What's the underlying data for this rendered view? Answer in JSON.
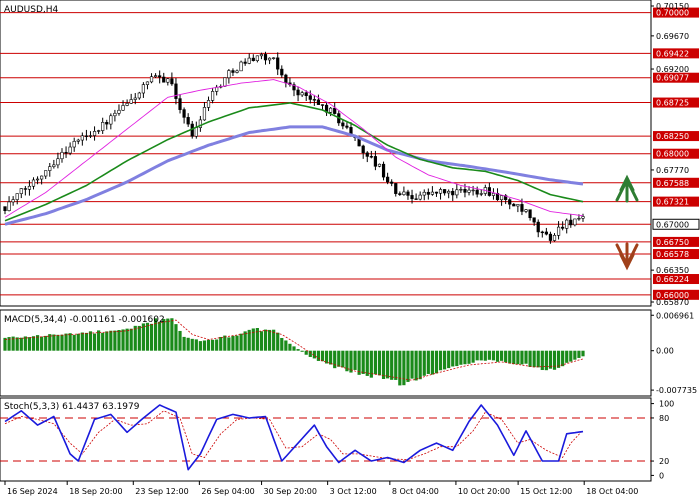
{
  "colors": {
    "background": "#ffffff",
    "bull_candle": "#5a5a5a",
    "bear_candle": "#000000",
    "level_line": "#cc0000",
    "level_tag": "#cc0000",
    "ma_fast": "#e020e0",
    "ma_mid": "#1a8a1a",
    "ma_slow": "#8080e0",
    "macd_hist": "#1a8a1a",
    "macd_signal": "#cc0000",
    "stoch_main": "#1a1adc",
    "stoch_signal": "#cc0000",
    "arrow_up": "#2e7d32",
    "arrow_down": "#a0401a",
    "axis": "#000000"
  },
  "icons": {
    "up_arrow": "double-chevron-up-icon",
    "down_arrow": "double-chevron-down-icon"
  },
  "chart_data": [
    {
      "type": "candlestick",
      "title": "AUDUSD,H4",
      "ylim": [
        0.6587,
        0.7015
      ],
      "price_scale": [
        "0.70150",
        "0.69670",
        "0.69200",
        "0.67770",
        "0.66350",
        "0.65870"
      ],
      "current_price": "0.67000",
      "levels": [
        {
          "value": 0.7,
          "label": "0.70000"
        },
        {
          "value": 0.69422,
          "label": "0.69422"
        },
        {
          "value": 0.69077,
          "label": "0.69077"
        },
        {
          "value": 0.68725,
          "label": "0.68725"
        },
        {
          "value": 0.6825,
          "label": "0.68250"
        },
        {
          "value": 0.68,
          "label": "0.68000"
        },
        {
          "value": 0.67588,
          "label": "0.67588"
        },
        {
          "value": 0.67321,
          "label": "0.67321"
        },
        {
          "value": 0.67,
          "label": "0.67000"
        },
        {
          "value": 0.6675,
          "label": "0.66750"
        },
        {
          "value": 0.66578,
          "label": "0.66578"
        },
        {
          "value": 0.66224,
          "label": "0.66224"
        },
        {
          "value": 0.66,
          "label": "0.66000"
        }
      ],
      "anchors": [
        [
          0,
          0.6725
        ],
        [
          6,
          0.6755
        ],
        [
          12,
          0.679
        ],
        [
          18,
          0.682
        ],
        [
          24,
          0.684
        ],
        [
          30,
          0.687
        ],
        [
          36,
          0.6905
        ],
        [
          40,
          0.6908
        ],
        [
          42,
          0.688
        ],
        [
          46,
          0.6825
        ],
        [
          50,
          0.688
        ],
        [
          56,
          0.692
        ],
        [
          62,
          0.694
        ],
        [
          66,
          0.693
        ],
        [
          70,
          0.6895
        ],
        [
          74,
          0.688
        ],
        [
          80,
          0.686
        ],
        [
          84,
          0.6835
        ],
        [
          88,
          0.6805
        ],
        [
          92,
          0.678
        ],
        [
          96,
          0.6745
        ],
        [
          100,
          0.674
        ],
        [
          106,
          0.6745
        ],
        [
          112,
          0.6745
        ],
        [
          118,
          0.675
        ],
        [
          124,
          0.673
        ],
        [
          128,
          0.6715
        ],
        [
          131,
          0.669
        ],
        [
          134,
          0.668
        ],
        [
          137,
          0.67
        ],
        [
          140,
          0.6707
        ],
        [
          142,
          0.6705
        ]
      ],
      "ma_fast_anchors": [
        [
          0,
          0.671
        ],
        [
          10,
          0.6745
        ],
        [
          20,
          0.679
        ],
        [
          30,
          0.6835
        ],
        [
          40,
          0.688
        ],
        [
          48,
          0.689
        ],
        [
          58,
          0.69
        ],
        [
          66,
          0.6905
        ],
        [
          72,
          0.6895
        ],
        [
          80,
          0.687
        ],
        [
          88,
          0.6835
        ],
        [
          96,
          0.6795
        ],
        [
          104,
          0.677
        ],
        [
          112,
          0.6755
        ],
        [
          118,
          0.6748
        ],
        [
          126,
          0.6735
        ],
        [
          134,
          0.6718
        ],
        [
          142,
          0.6712
        ]
      ],
      "ma_mid_anchors": [
        [
          0,
          0.6705
        ],
        [
          10,
          0.6728
        ],
        [
          20,
          0.6755
        ],
        [
          30,
          0.679
        ],
        [
          40,
          0.682
        ],
        [
          50,
          0.6845
        ],
        [
          60,
          0.6865
        ],
        [
          70,
          0.6872
        ],
        [
          78,
          0.6862
        ],
        [
          86,
          0.684
        ],
        [
          94,
          0.6812
        ],
        [
          102,
          0.6792
        ],
        [
          110,
          0.678
        ],
        [
          118,
          0.6775
        ],
        [
          126,
          0.6762
        ],
        [
          134,
          0.6742
        ],
        [
          142,
          0.6732
        ]
      ],
      "ma_slow_anchors": [
        [
          0,
          0.67
        ],
        [
          10,
          0.6715
        ],
        [
          20,
          0.6735
        ],
        [
          30,
          0.676
        ],
        [
          40,
          0.679
        ],
        [
          50,
          0.6812
        ],
        [
          60,
          0.683
        ],
        [
          70,
          0.6838
        ],
        [
          78,
          0.6838
        ],
        [
          86,
          0.6825
        ],
        [
          94,
          0.6805
        ],
        [
          104,
          0.679
        ],
        [
          114,
          0.6782
        ],
        [
          124,
          0.6773
        ],
        [
          134,
          0.6763
        ],
        [
          142,
          0.6757
        ]
      ]
    },
    {
      "type": "histogram",
      "title": "MACD(5,34,4) -0.001161 -0.001602",
      "ylim": [
        -0.0085,
        0.0076
      ],
      "scale_labels": [
        {
          "value": 0.006961,
          "label": "0.006961"
        },
        {
          "value": 0.0,
          "label": "0.00"
        },
        {
          "value": -0.007735,
          "label": "-0.007735"
        }
      ],
      "hist_anchors": [
        [
          0,
          0.0025
        ],
        [
          10,
          0.003
        ],
        [
          20,
          0.0035
        ],
        [
          30,
          0.004
        ],
        [
          38,
          0.0062
        ],
        [
          41,
          0.0066
        ],
        [
          44,
          0.0028
        ],
        [
          48,
          0.0018
        ],
        [
          56,
          0.003
        ],
        [
          62,
          0.0042
        ],
        [
          66,
          0.0038
        ],
        [
          70,
          0.0015
        ],
        [
          74,
          -0.0008
        ],
        [
          80,
          -0.003
        ],
        [
          88,
          -0.0045
        ],
        [
          94,
          -0.0055
        ],
        [
          98,
          -0.0065
        ],
        [
          104,
          -0.0048
        ],
        [
          110,
          -0.003
        ],
        [
          118,
          -0.0018
        ],
        [
          126,
          -0.0025
        ],
        [
          134,
          -0.0038
        ],
        [
          142,
          -0.0012
        ]
      ],
      "signal_anchors": [
        [
          0,
          0.0022
        ],
        [
          10,
          0.0028
        ],
        [
          20,
          0.0034
        ],
        [
          30,
          0.0039
        ],
        [
          38,
          0.0055
        ],
        [
          42,
          0.006
        ],
        [
          46,
          0.0032
        ],
        [
          50,
          0.0022
        ],
        [
          58,
          0.0032
        ],
        [
          64,
          0.004
        ],
        [
          68,
          0.0032
        ],
        [
          72,
          0.0012
        ],
        [
          78,
          -0.002
        ],
        [
          86,
          -0.004
        ],
        [
          94,
          -0.005
        ],
        [
          100,
          -0.0058
        ],
        [
          106,
          -0.0044
        ],
        [
          114,
          -0.0028
        ],
        [
          122,
          -0.0022
        ],
        [
          130,
          -0.0032
        ],
        [
          136,
          -0.003
        ],
        [
          142,
          -0.0016
        ]
      ]
    },
    {
      "type": "line",
      "title": "Stoch(5,3,3) 61.4437 63.1979",
      "ylim": [
        -5,
        105
      ],
      "scale_labels": [
        {
          "value": 100,
          "label": "100"
        },
        {
          "value": 80,
          "label": "80"
        },
        {
          "value": 20,
          "label": "20"
        },
        {
          "value": 0,
          "label": "0"
        }
      ],
      "levels": [
        80,
        20
      ],
      "main_anchors": [
        [
          0,
          75
        ],
        [
          4,
          90
        ],
        [
          8,
          70
        ],
        [
          12,
          82
        ],
        [
          16,
          30
        ],
        [
          18,
          20
        ],
        [
          22,
          78
        ],
        [
          26,
          85
        ],
        [
          30,
          60
        ],
        [
          34,
          80
        ],
        [
          38,
          98
        ],
        [
          42,
          88
        ],
        [
          45,
          8
        ],
        [
          48,
          30
        ],
        [
          52,
          78
        ],
        [
          56,
          85
        ],
        [
          60,
          80
        ],
        [
          64,
          82
        ],
        [
          68,
          20
        ],
        [
          72,
          45
        ],
        [
          76,
          70
        ],
        [
          79,
          40
        ],
        [
          82,
          18
        ],
        [
          86,
          35
        ],
        [
          90,
          20
        ],
        [
          94,
          25
        ],
        [
          98,
          18
        ],
        [
          102,
          35
        ],
        [
          106,
          45
        ],
        [
          110,
          35
        ],
        [
          114,
          75
        ],
        [
          117,
          98
        ],
        [
          121,
          70
        ],
        [
          125,
          28
        ],
        [
          128,
          62
        ],
        [
          132,
          20
        ],
        [
          136,
          20
        ],
        [
          138,
          58
        ],
        [
          142,
          61
        ]
      ],
      "signal_anchors": [
        [
          0,
          72
        ],
        [
          4,
          82
        ],
        [
          8,
          78
        ],
        [
          12,
          72
        ],
        [
          16,
          45
        ],
        [
          19,
          30
        ],
        [
          23,
          60
        ],
        [
          27,
          78
        ],
        [
          31,
          70
        ],
        [
          35,
          72
        ],
        [
          39,
          90
        ],
        [
          43,
          80
        ],
        [
          46,
          30
        ],
        [
          49,
          25
        ],
        [
          53,
          58
        ],
        [
          57,
          78
        ],
        [
          61,
          80
        ],
        [
          65,
          78
        ],
        [
          69,
          38
        ],
        [
          73,
          40
        ],
        [
          77,
          58
        ],
        [
          80,
          50
        ],
        [
          83,
          30
        ],
        [
          87,
          30
        ],
        [
          91,
          26
        ],
        [
          95,
          23
        ],
        [
          99,
          22
        ],
        [
          103,
          30
        ],
        [
          107,
          40
        ],
        [
          111,
          40
        ],
        [
          115,
          62
        ],
        [
          118,
          88
        ],
        [
          122,
          78
        ],
        [
          126,
          45
        ],
        [
          129,
          50
        ],
        [
          133,
          35
        ],
        [
          137,
          25
        ],
        [
          139,
          45
        ],
        [
          142,
          63
        ]
      ]
    }
  ],
  "time_axis": {
    "count": 143,
    "labels": [
      {
        "index": 0,
        "label": "16 Sep 2024"
      },
      {
        "index": 16,
        "label": "18 Sep 20:00"
      },
      {
        "index": 33,
        "label": "23 Sep 12:00"
      },
      {
        "index": 50,
        "label": "26 Sep 04:00"
      },
      {
        "index": 66,
        "label": "30 Sep 20:00"
      },
      {
        "index": 83,
        "label": "3 Oct 12:00"
      },
      {
        "index": 99,
        "label": "8 Oct 04:00"
      },
      {
        "index": 116,
        "label": "10 Oct 20:00"
      },
      {
        "index": 132,
        "label": "15 Oct 12:00"
      },
      {
        "index": 149,
        "label": "18 Oct 04:00"
      }
    ]
  }
}
